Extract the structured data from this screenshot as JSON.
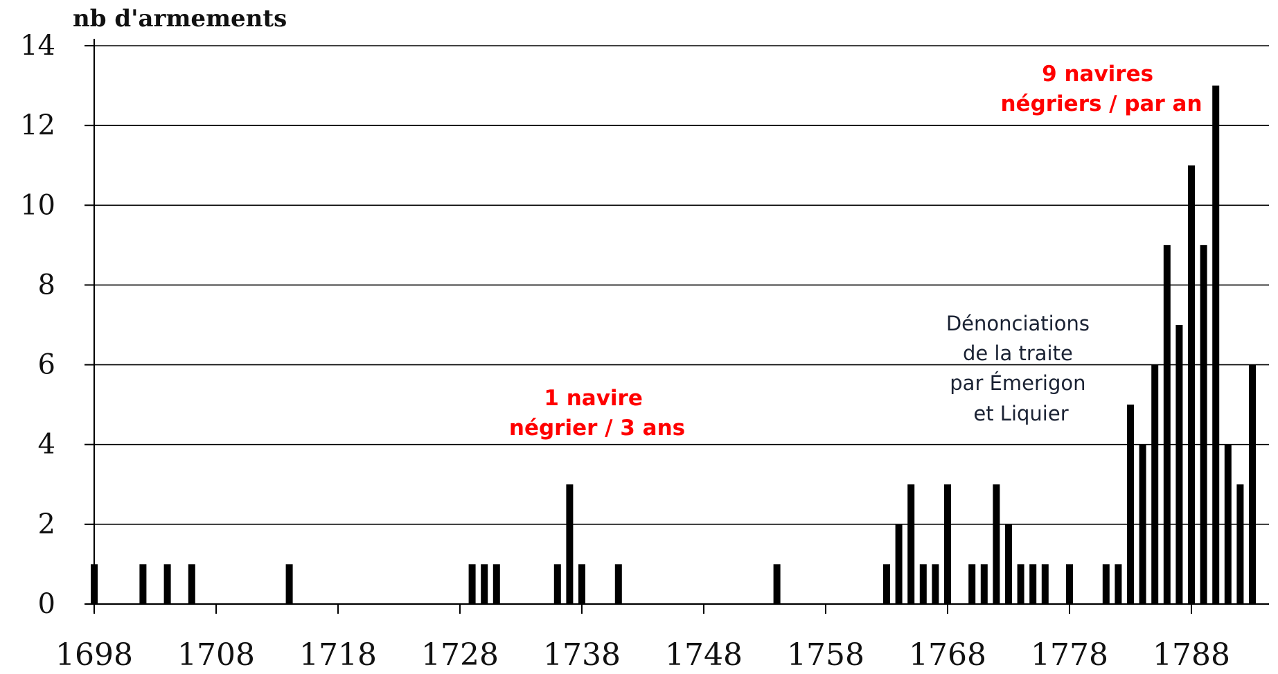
{
  "chart_data": {
    "type": "bar",
    "ylabel": "nb d'armements",
    "ylim": [
      0,
      14
    ],
    "yticks": [
      "0",
      "2",
      "4",
      "6",
      "8",
      "10",
      "12",
      "14"
    ],
    "xlim": [
      1698,
      1792
    ],
    "xticks": [
      "1698",
      "1708",
      "1718",
      "1728",
      "1738",
      "1748",
      "1758",
      "1768",
      "1778",
      "1788"
    ],
    "grid": "horizontal",
    "bar_color": "#000000",
    "points": [
      {
        "year": 1698,
        "value": 1
      },
      {
        "year": 1702,
        "value": 1
      },
      {
        "year": 1704,
        "value": 1
      },
      {
        "year": 1706,
        "value": 1
      },
      {
        "year": 1714,
        "value": 1
      },
      {
        "year": 1729,
        "value": 1
      },
      {
        "year": 1730,
        "value": 1
      },
      {
        "year": 1731,
        "value": 1
      },
      {
        "year": 1736,
        "value": 1
      },
      {
        "year": 1737,
        "value": 3
      },
      {
        "year": 1738,
        "value": 1
      },
      {
        "year": 1741,
        "value": 1
      },
      {
        "year": 1754,
        "value": 1
      },
      {
        "year": 1763,
        "value": 1
      },
      {
        "year": 1764,
        "value": 2
      },
      {
        "year": 1765,
        "value": 3
      },
      {
        "year": 1766,
        "value": 1
      },
      {
        "year": 1767,
        "value": 1
      },
      {
        "year": 1768,
        "value": 3
      },
      {
        "year": 1770,
        "value": 1
      },
      {
        "year": 1771,
        "value": 1
      },
      {
        "year": 1772,
        "value": 3
      },
      {
        "year": 1773,
        "value": 2
      },
      {
        "year": 1774,
        "value": 1
      },
      {
        "year": 1775,
        "value": 1
      },
      {
        "year": 1776,
        "value": 1
      },
      {
        "year": 1778,
        "value": 1
      },
      {
        "year": 1781,
        "value": 1
      },
      {
        "year": 1782,
        "value": 1
      },
      {
        "year": 1783,
        "value": 5
      },
      {
        "year": 1784,
        "value": 4
      },
      {
        "year": 1785,
        "value": 6
      },
      {
        "year": 1786,
        "value": 9
      },
      {
        "year": 1787,
        "value": 7
      },
      {
        "year": 1788,
        "value": 11
      },
      {
        "year": 1789,
        "value": 9
      },
      {
        "year": 1790,
        "value": 13
      },
      {
        "year": 1791,
        "value": 4
      },
      {
        "year": 1792,
        "value": 3
      },
      {
        "year": 1793,
        "value": 6
      }
    ],
    "annotations": [
      {
        "lines": [
          "1 navire",
          "négrier / 3 ans"
        ],
        "color": "#ff0000"
      },
      {
        "lines": [
          "Dénonciations",
          "de la traite",
          "par Émerigon",
          "et Liquier"
        ],
        "color": "#1a2233"
      },
      {
        "lines": [
          "9 navires",
          "négriers / par an"
        ],
        "color": "#ff0000"
      }
    ]
  }
}
